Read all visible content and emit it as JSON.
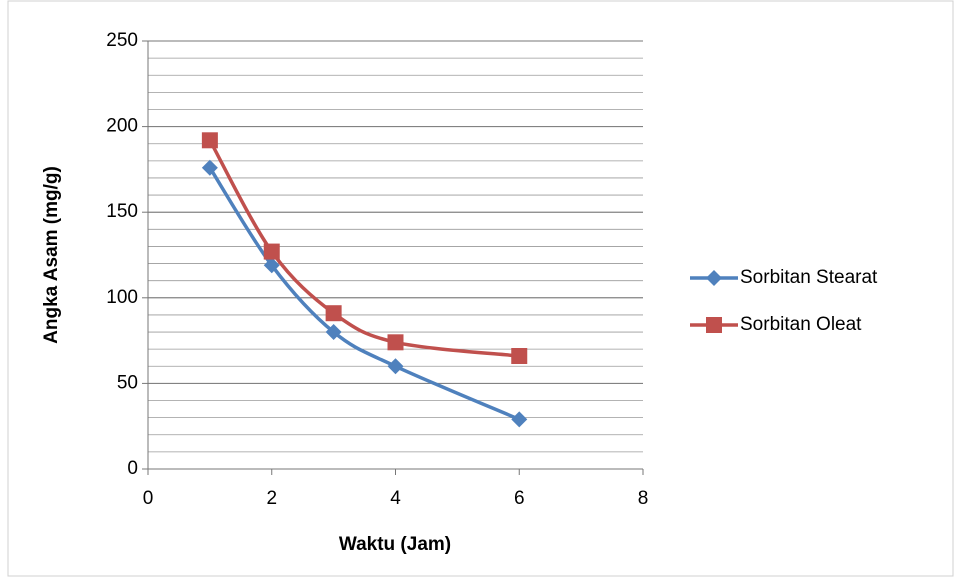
{
  "chart_data": {
    "type": "scatter-smooth",
    "xlabel": "Waktu (Jam)",
    "ylabel": "Angka Asam (mg/g)",
    "xlim": [
      0,
      8
    ],
    "xticks": [
      0,
      2,
      4,
      6,
      8
    ],
    "ylim": [
      0,
      250
    ],
    "yticks": [
      0,
      50,
      100,
      150,
      200,
      250
    ],
    "grid": true,
    "minor_grid_step": 10,
    "legend": "right",
    "series": [
      {
        "name": "Sorbitan Stearat",
        "color": "#4f81bd",
        "marker": "diamond",
        "x": [
          1,
          2,
          3,
          4,
          6
        ],
        "values": [
          176,
          119,
          80,
          60,
          29
        ]
      },
      {
        "name": "Sorbitan Oleat",
        "color": "#c0504d",
        "marker": "square",
        "x": [
          1,
          2,
          3,
          4,
          6
        ],
        "values": [
          192,
          127,
          91,
          74,
          66
        ]
      }
    ]
  }
}
